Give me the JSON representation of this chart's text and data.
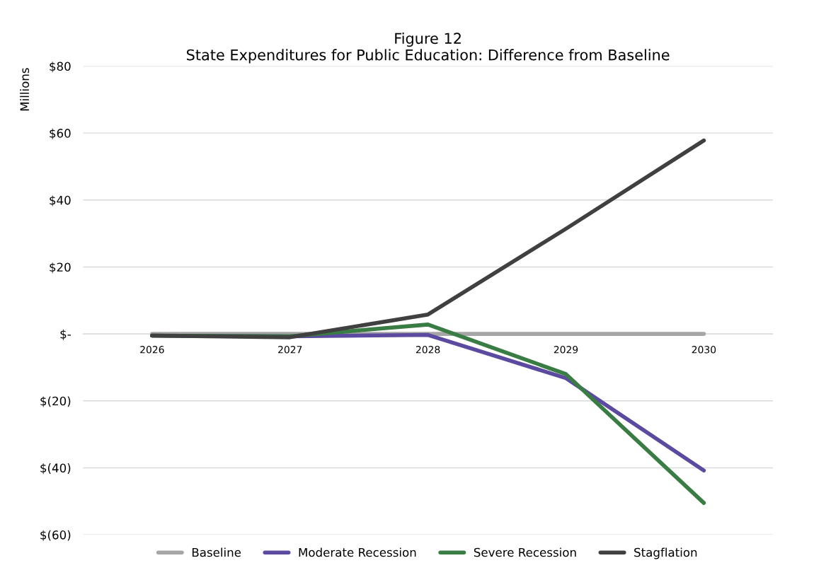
{
  "chart_data": {
    "type": "line",
    "title": "Figure 12\nState Expenditures for Public Education: Difference from Baseline",
    "ylabel": "Millions",
    "categories": [
      "2026",
      "2027",
      "2028",
      "2029",
      "2030"
    ],
    "series": [
      {
        "name": "Baseline",
        "color": "#a6a6a6",
        "values": [
          0,
          0,
          0,
          0,
          0
        ]
      },
      {
        "name": "Moderate Recession",
        "color": "#5b4a9f",
        "values": [
          -0.5,
          -0.7,
          -0.3,
          -13.2,
          -40.8
        ]
      },
      {
        "name": "Severe Recession",
        "color": "#3a7d44",
        "values": [
          -0.5,
          -0.7,
          2.8,
          -12,
          -50.5
        ]
      },
      {
        "name": "Stagflation",
        "color": "#404040",
        "values": [
          -0.5,
          -1,
          5.8,
          31.4,
          57.8
        ]
      }
    ],
    "ylim": [
      -60,
      80
    ],
    "yticks": [
      {
        "value": -60,
        "label": "$(60)"
      },
      {
        "value": -40,
        "label": "$(40)"
      },
      {
        "value": -20,
        "label": "$(20)"
      },
      {
        "value": 0,
        "label": "$-"
      },
      {
        "value": 20,
        "label": "$20"
      },
      {
        "value": 40,
        "label": "$40"
      },
      {
        "value": 60,
        "label": "$60"
      },
      {
        "value": 80,
        "label": "$80"
      }
    ],
    "grid": "y",
    "legend": "bottom",
    "marker": "none",
    "line_style": "solid"
  }
}
